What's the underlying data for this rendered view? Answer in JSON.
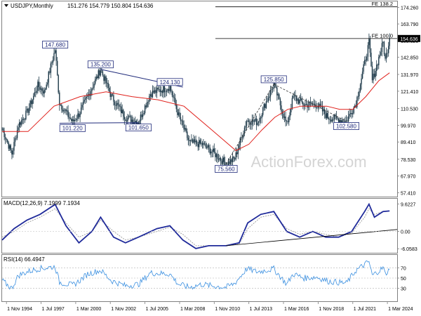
{
  "chart_data": [
    {
      "type": "candlestick",
      "panel": "price",
      "title": "USDJPY,Monthly",
      "ohlc_readout": "151.276 154.779 150.804 154.636",
      "last_price_label": "154.636",
      "watermark": "ActionForex.com",
      "ylim": [
        55,
        178
      ],
      "y_ticks": [
        "174.260",
        "163.790",
        "153.320",
        "142.850",
        "131.970",
        "121.410",
        "110.530",
        "99.970",
        "89.410",
        "78.530",
        "67.970",
        "57.410"
      ],
      "x_ticks": [
        "1 Nov 1994",
        "1 Jul 1997",
        "1 Mar 2000",
        "1 Nov 2002",
        "1 Jul 2005",
        "1 Mar 2008",
        "1 Nov 2010",
        "1 Jul 2013",
        "1 Mar 2016",
        "1 Nov 2018",
        "1 Jul 2021",
        "1 Mar 2024"
      ],
      "xlim": [
        "1994-07",
        "2024-12"
      ],
      "price_path": [
        [
          "1994-07",
          98
        ],
        [
          "1995-04",
          82
        ],
        [
          "1995-10",
          100
        ],
        [
          "1996-06",
          108
        ],
        [
          "1997-04",
          125
        ],
        [
          "1997-10",
          121
        ],
        [
          "1998-08",
          147.68
        ],
        [
          "1998-12",
          114
        ],
        [
          "1999-12",
          102
        ],
        [
          "2000-06",
          107
        ],
        [
          "2001-02",
          118
        ],
        [
          "2002-02",
          135.2
        ],
        [
          "2002-12",
          118
        ],
        [
          "2004-01",
          105
        ],
        [
          "2005-01",
          102
        ],
        [
          "2005-12",
          120
        ],
        [
          "2007-06",
          124.13
        ],
        [
          "2008-02",
          106
        ],
        [
          "2008-12",
          89
        ],
        [
          "2009-12",
          88
        ],
        [
          "2010-08",
          84
        ],
        [
          "2011-10",
          75.56
        ],
        [
          "2012-06",
          79
        ],
        [
          "2013-05",
          103
        ],
        [
          "2014-03",
          102
        ],
        [
          "2015-06",
          125.85
        ],
        [
          "2016-06",
          100
        ],
        [
          "2016-12",
          118
        ],
        [
          "2017-10",
          113
        ],
        [
          "2018-10",
          113
        ],
        [
          "2019-08",
          105
        ],
        [
          "2021-01",
          102.58
        ],
        [
          "2021-10",
          114
        ],
        [
          "2022-10",
          151.9
        ],
        [
          "2023-01",
          128
        ],
        [
          "2023-11",
          151.9
        ],
        [
          "2024-01",
          141
        ],
        [
          "2024-05",
          154.636
        ]
      ],
      "moving_average": [
        [
          "1994-07",
          96
        ],
        [
          "1996-07",
          96
        ],
        [
          "1998-07",
          112
        ],
        [
          "2000-07",
          118
        ],
        [
          "2002-07",
          121
        ],
        [
          "2004-07",
          118
        ],
        [
          "2006-07",
          116
        ],
        [
          "2008-07",
          112
        ],
        [
          "2010-07",
          98
        ],
        [
          "2011-07",
          91
        ],
        [
          "2012-07",
          84
        ],
        [
          "2013-07",
          88
        ],
        [
          "2014-07",
          97
        ],
        [
          "2015-07",
          105
        ],
        [
          "2016-07",
          110
        ],
        [
          "2017-07",
          112
        ],
        [
          "2019-07",
          112
        ],
        [
          "2020-07",
          110
        ],
        [
          "2021-07",
          110
        ],
        [
          "2022-07",
          118
        ],
        [
          "2023-07",
          128
        ],
        [
          "2024-05",
          133
        ]
      ],
      "price_labels": [
        {
          "text": "147.680",
          "date": "1998-08",
          "value": 147.68
        },
        {
          "text": "135.200",
          "date": "2002-02",
          "value": 135.2
        },
        {
          "text": "124.130",
          "date": "2007-06",
          "value": 124.13
        },
        {
          "text": "101.220",
          "date": "1999-12",
          "value": 101.22
        },
        {
          "text": "101.650",
          "date": "2005-01",
          "value": 101.65
        },
        {
          "text": "75.560",
          "date": "2011-10",
          "value": 75.56
        },
        {
          "text": "125.850",
          "date": "2015-06",
          "value": 125.85
        },
        {
          "text": "102.580",
          "date": "2021-01",
          "value": 102.58
        }
      ],
      "fib_levels": [
        {
          "text": "FE 138.2",
          "value": 174.6
        },
        {
          "text": "FE 100.0",
          "value": 154.6
        }
      ],
      "trend_lines": [
        {
          "from": [
            "2002-02",
            135.2
          ],
          "to": [
            "2008-06",
            124
          ],
          "style": "solid"
        },
        {
          "from": [
            "1998-12",
            101.22
          ],
          "to": [
            "2005-01",
            101.65
          ],
          "style": "solid"
        },
        {
          "from": [
            "2011-10",
            75.56
          ],
          "to": [
            "2015-06",
            125.85
          ],
          "style": "dashed"
        },
        {
          "from": [
            "2015-06",
            125.85
          ],
          "to": [
            "2021-01",
            102.58
          ],
          "style": "dashed"
        }
      ]
    },
    {
      "type": "line",
      "panel": "macd",
      "title": "MACD(12,26,9) 7.1999 7.1934",
      "ylim": [
        -7.5,
        11.5
      ],
      "y_ticks": [
        "9.6227",
        "0.00",
        "-6.0583"
      ],
      "last_label": "9.6227",
      "macd": [
        [
          "1994-07",
          -3
        ],
        [
          "1995-06",
          1
        ],
        [
          "1996-06",
          4
        ],
        [
          "1997-06",
          6
        ],
        [
          "1998-08",
          9.5
        ],
        [
          "1999-06",
          2
        ],
        [
          "2000-06",
          -4
        ],
        [
          "2001-06",
          0
        ],
        [
          "2002-02",
          5
        ],
        [
          "2003-02",
          -2
        ],
        [
          "2004-01",
          -4
        ],
        [
          "2005-01",
          -2
        ],
        [
          "2006-06",
          1
        ],
        [
          "2007-06",
          2
        ],
        [
          "2008-06",
          -3
        ],
        [
          "2009-06",
          -6
        ],
        [
          "2010-06",
          -5
        ],
        [
          "2011-10",
          -5
        ],
        [
          "2012-10",
          -4
        ],
        [
          "2013-06",
          3
        ],
        [
          "2014-06",
          6
        ],
        [
          "2015-06",
          7
        ],
        [
          "2016-06",
          0
        ],
        [
          "2017-06",
          -2
        ],
        [
          "2018-06",
          0
        ],
        [
          "2019-06",
          -2
        ],
        [
          "2020-06",
          -2
        ],
        [
          "2021-06",
          0
        ],
        [
          "2022-06",
          7
        ],
        [
          "2022-10",
          9.6
        ],
        [
          "2023-03",
          5
        ],
        [
          "2023-11",
          7
        ],
        [
          "2024-05",
          7.2
        ]
      ],
      "signal": [
        [
          "1994-07",
          -2
        ],
        [
          "1995-06",
          0
        ],
        [
          "1996-06",
          3
        ],
        [
          "1997-06",
          5
        ],
        [
          "1998-08",
          8
        ],
        [
          "1999-06",
          3
        ],
        [
          "2000-06",
          -2
        ],
        [
          "2001-06",
          0
        ],
        [
          "2002-02",
          4
        ],
        [
          "2003-02",
          0
        ],
        [
          "2004-01",
          -3
        ],
        [
          "2005-01",
          -2
        ],
        [
          "2006-06",
          0
        ],
        [
          "2007-06",
          1.5
        ],
        [
          "2008-06",
          -1
        ],
        [
          "2009-06",
          -5
        ],
        [
          "2010-06",
          -5
        ],
        [
          "2011-10",
          -5
        ],
        [
          "2012-10",
          -4.5
        ],
        [
          "2013-06",
          1
        ],
        [
          "2014-06",
          5
        ],
        [
          "2015-06",
          6
        ],
        [
          "2016-06",
          1
        ],
        [
          "2017-06",
          -1
        ],
        [
          "2018-06",
          0
        ],
        [
          "2019-06",
          -1
        ],
        [
          "2020-06",
          -2
        ],
        [
          "2021-06",
          -0.5
        ],
        [
          "2022-06",
          5
        ],
        [
          "2022-10",
          8
        ],
        [
          "2023-03",
          6
        ],
        [
          "2023-11",
          7
        ],
        [
          "2024-05",
          7.19
        ]
      ],
      "trend_line": {
        "from": [
          "2011-10",
          -5
        ],
        "to": [
          "2024-12",
          0.7
        ]
      }
    },
    {
      "type": "line",
      "panel": "rsi",
      "title": "RSI(14) 66.4947",
      "ylim": [
        5,
        95
      ],
      "y_ticks": [
        "70",
        "50",
        "30"
      ],
      "rsi": [
        [
          "1994-07",
          45
        ],
        [
          "1995-04",
          30
        ],
        [
          "1995-10",
          55
        ],
        [
          "1996-06",
          62
        ],
        [
          "1997-04",
          68
        ],
        [
          "1998-08",
          72
        ],
        [
          "1998-12",
          42
        ],
        [
          "1999-12",
          36
        ],
        [
          "2000-06",
          44
        ],
        [
          "2001-02",
          58
        ],
        [
          "2002-02",
          65
        ],
        [
          "2002-12",
          45
        ],
        [
          "2004-01",
          35
        ],
        [
          "2005-01",
          38
        ],
        [
          "2005-12",
          60
        ],
        [
          "2007-06",
          58
        ],
        [
          "2008-02",
          38
        ],
        [
          "2008-12",
          32
        ],
        [
          "2009-12",
          38
        ],
        [
          "2010-08",
          35
        ],
        [
          "2011-10",
          32
        ],
        [
          "2012-06",
          40
        ],
        [
          "2013-05",
          68
        ],
        [
          "2014-03",
          62
        ],
        [
          "2015-06",
          68
        ],
        [
          "2016-06",
          38
        ],
        [
          "2016-12",
          58
        ],
        [
          "2017-10",
          50
        ],
        [
          "2018-10",
          52
        ],
        [
          "2019-08",
          44
        ],
        [
          "2021-01",
          40
        ],
        [
          "2021-10",
          65
        ],
        [
          "2022-10",
          82
        ],
        [
          "2023-01",
          55
        ],
        [
          "2023-11",
          70
        ],
        [
          "2024-01",
          58
        ],
        [
          "2024-05",
          66.49
        ]
      ]
    }
  ]
}
